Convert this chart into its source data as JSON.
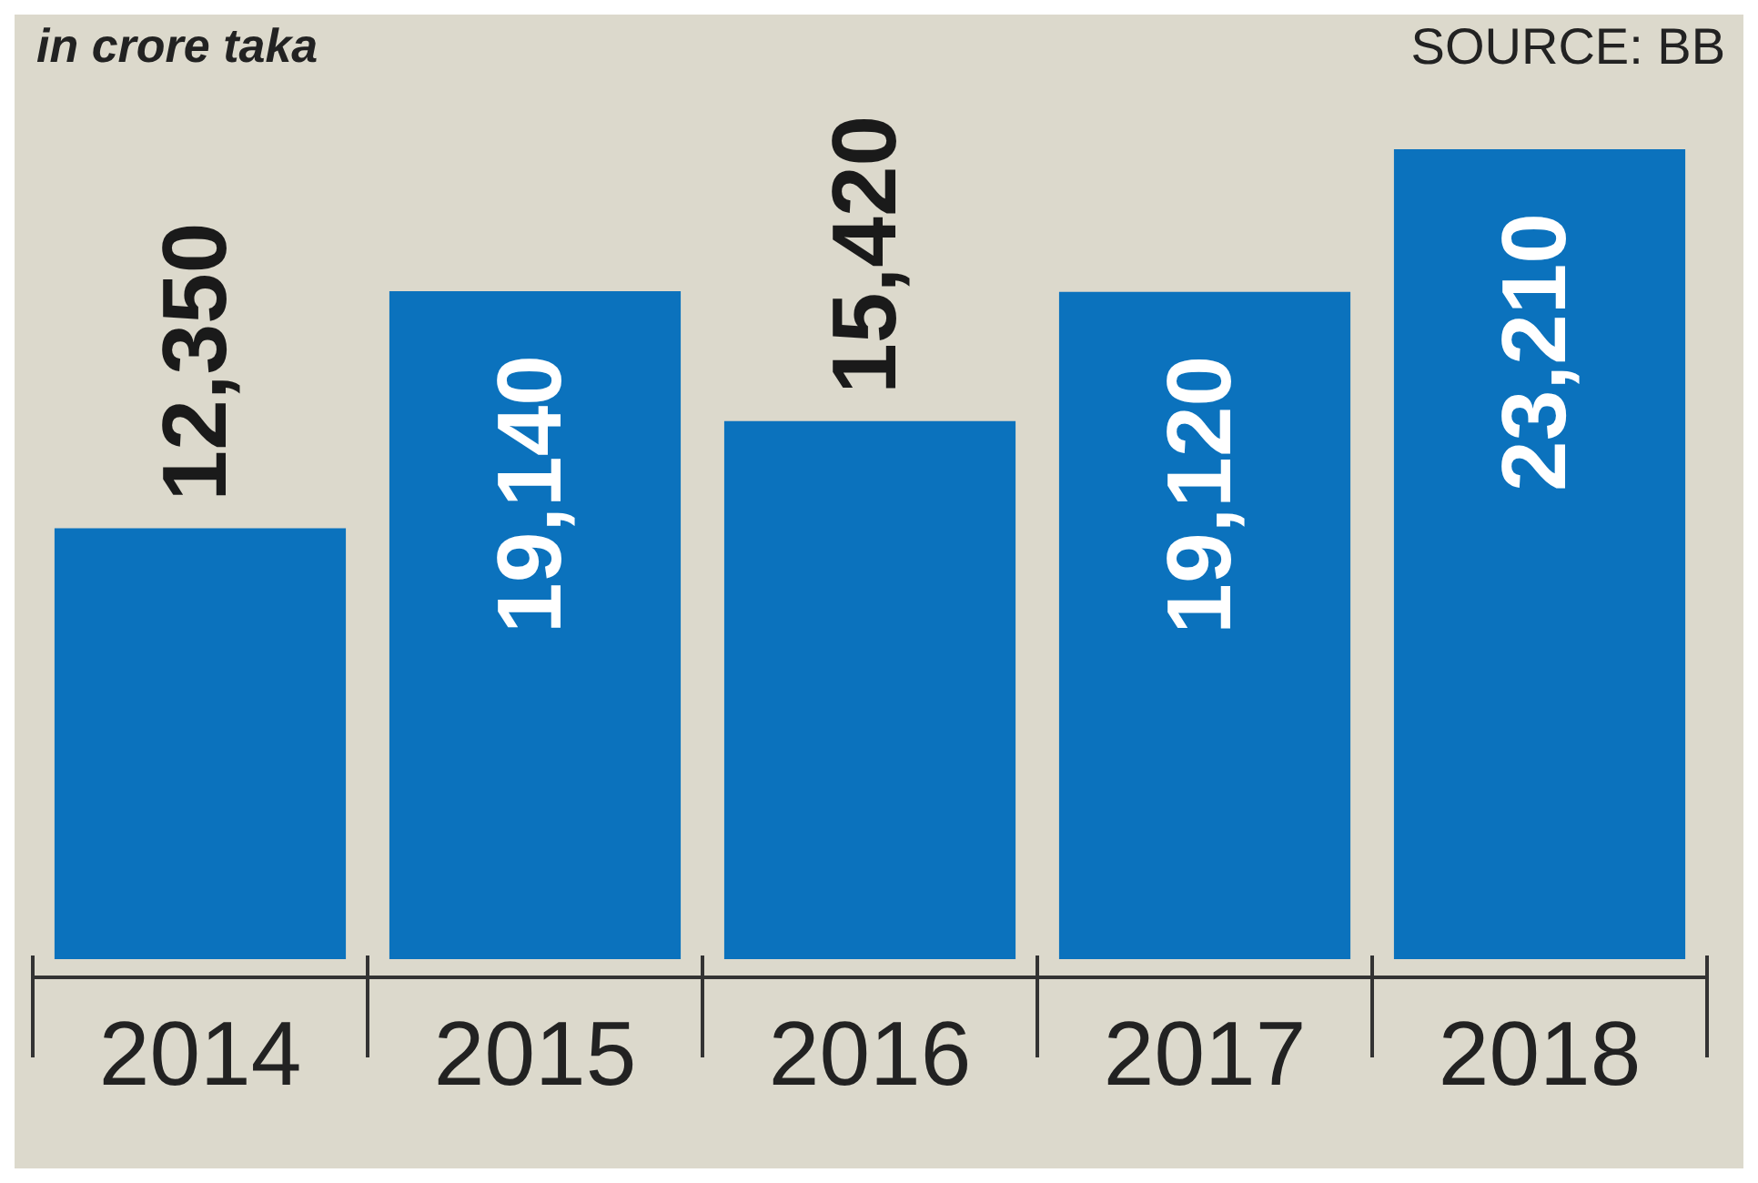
{
  "chart_data": {
    "type": "bar",
    "subtitle": "in crore taka",
    "annotations": [
      "SOURCE: BB"
    ],
    "categories": [
      "2014",
      "2015",
      "2016",
      "2017",
      "2018"
    ],
    "values": [
      12350,
      19140,
      15420,
      19120,
      23210
    ],
    "value_labels": [
      "12,350",
      "19,140",
      "15,420",
      "19,120",
      "23,210"
    ],
    "color": "#0b72bd",
    "grid": false,
    "legend": false
  }
}
